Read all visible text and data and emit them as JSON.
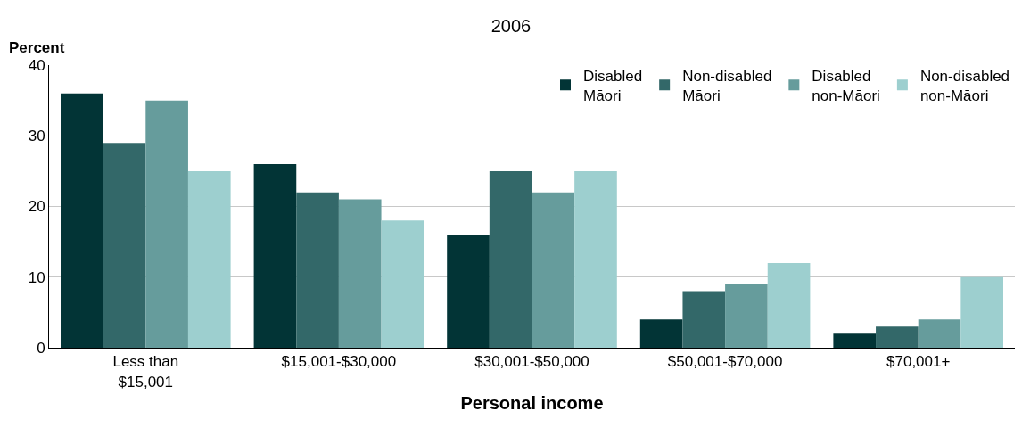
{
  "chart_data": {
    "type": "bar",
    "title": "2006",
    "xlabel": "Personal income",
    "ylabel": "Percent",
    "categories": [
      "Less than\n$15,001",
      "$15,001-$30,000",
      "$30,001-$50,000",
      "$50,001-$70,000",
      "$70,001+"
    ],
    "series": [
      {
        "name": "Disabled\nMāori",
        "color": "#023436",
        "values": [
          36,
          26,
          16,
          4,
          2
        ]
      },
      {
        "name": "Non-disabled\nMāori",
        "color": "#336869",
        "values": [
          29,
          22,
          25,
          8,
          3
        ]
      },
      {
        "name": "Disabled\nnon-Māori",
        "color": "#669c9c",
        "values": [
          35,
          21,
          22,
          9,
          4
        ]
      },
      {
        "name": "Non-disabled\nnon-Māori",
        "color": "#9dcfcf",
        "values": [
          25,
          18,
          25,
          12,
          10
        ]
      }
    ],
    "ylim": [
      0,
      40
    ],
    "yticks": [
      0,
      10,
      20,
      30,
      40
    ],
    "grid": "y",
    "legend": "top right"
  }
}
